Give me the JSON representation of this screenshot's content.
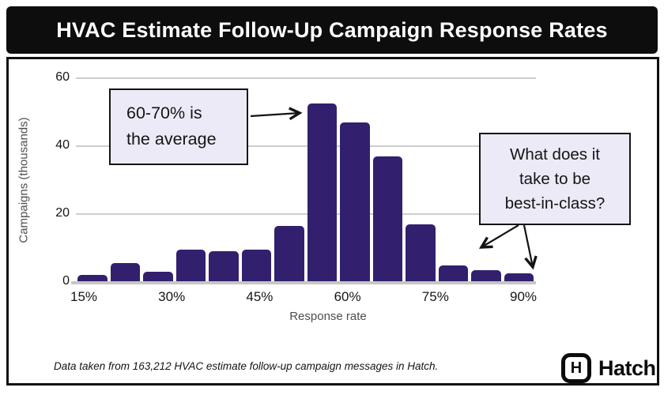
{
  "chart_data": {
    "type": "bar",
    "title": "HVAC Estimate Follow-Up Campaign Response Rates",
    "xlabel": "Response rate",
    "ylabel": "Campaigns (thousands)",
    "values": [
      2,
      5.5,
      3,
      9.5,
      9,
      9.5,
      16.5,
      52.5,
      47,
      37,
      17,
      5,
      3.5,
      2.5
    ],
    "x_tick_labels": [
      "15%",
      "30%",
      "45%",
      "60%",
      "75%",
      "90%"
    ],
    "y_ticks": [
      0,
      20,
      40,
      60
    ],
    "ylim": [
      0,
      60
    ],
    "grid": "horizontal",
    "legend": "none",
    "bar_color": "#32206E",
    "annotations": {
      "average": {
        "lines": [
          "60-70% is",
          "the average"
        ]
      },
      "best_in_class": {
        "lines": [
          "What does it",
          "take to be",
          "best-in-class?"
        ]
      },
      "box_bg": "#ECEAF6",
      "border_color": "#141414"
    }
  },
  "footer": {
    "source": "Data taken from 163,212 HVAC estimate follow-up campaign messages in Hatch.",
    "brand": "Hatch",
    "monogram": "H"
  }
}
